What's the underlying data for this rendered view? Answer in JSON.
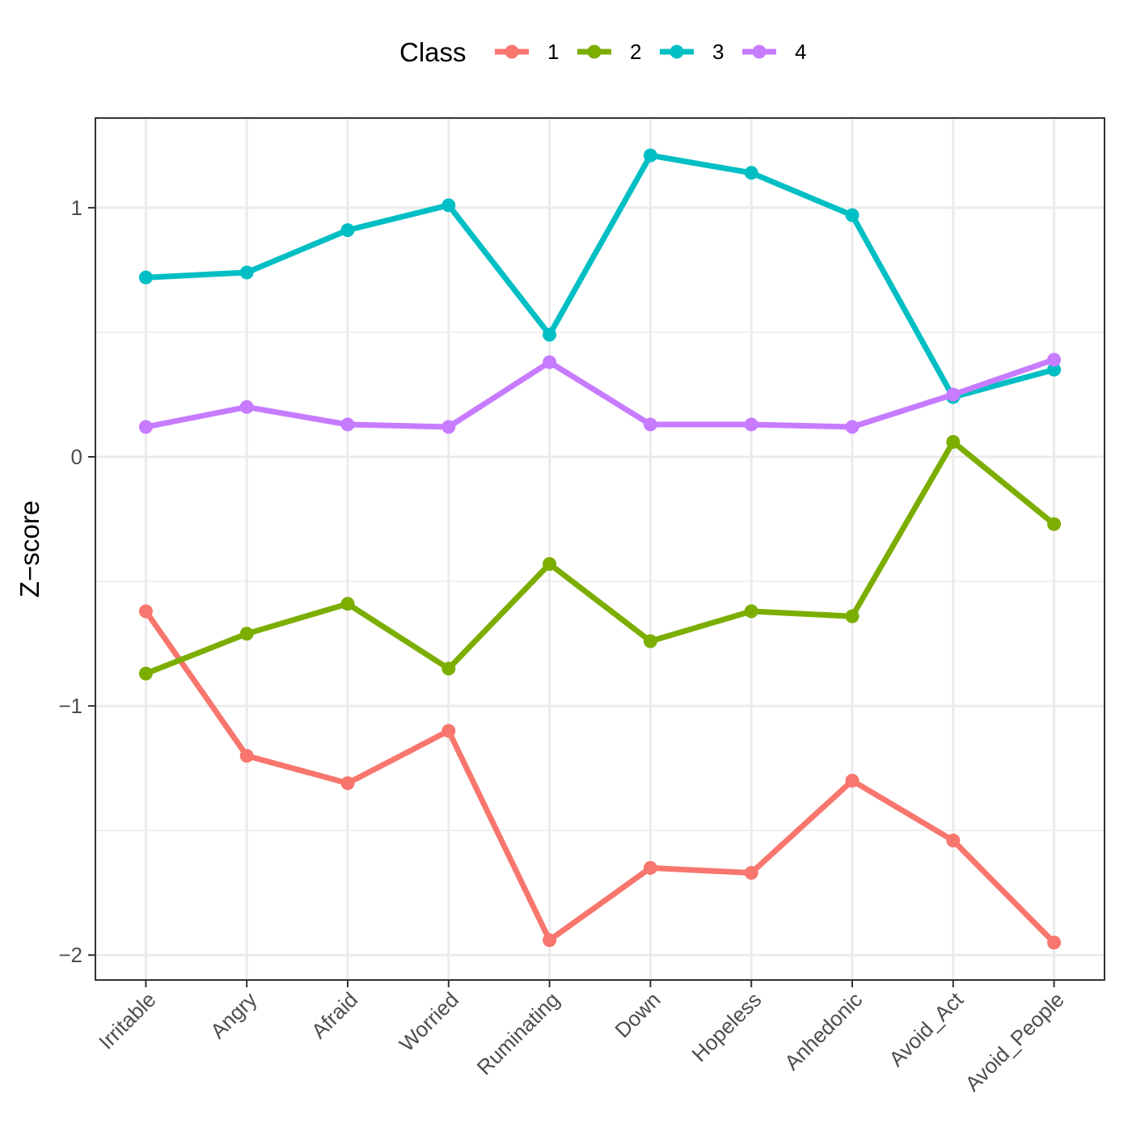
{
  "chart_data": {
    "type": "line",
    "title": "",
    "xlabel": "",
    "ylabel": "Z−score",
    "categories": [
      "Irritable",
      "Angry",
      "Afraid",
      "Worried",
      "Ruminating",
      "Down",
      "Hopeless",
      "Anhedonic",
      "Avoid_Act",
      "Avoid_People"
    ],
    "ylim": [
      -2.1,
      1.36
    ],
    "yticks": [
      -2,
      -1,
      0,
      1
    ],
    "ytick_labels": [
      "−2",
      "−1",
      "0",
      "1"
    ],
    "minor_grid": [
      -1.5,
      -0.5,
      0.5
    ],
    "grid": true,
    "legend": {
      "title": "Class",
      "position": "top"
    },
    "series": [
      {
        "name": "1",
        "color": "#F8766D",
        "values": [
          -0.62,
          -1.2,
          -1.31,
          -1.1,
          -1.94,
          -1.65,
          -1.67,
          -1.3,
          -1.54,
          -1.95
        ]
      },
      {
        "name": "2",
        "color": "#7CAE00",
        "values": [
          -0.87,
          -0.71,
          -0.59,
          -0.85,
          -0.43,
          -0.74,
          -0.62,
          -0.64,
          0.06,
          -0.27
        ]
      },
      {
        "name": "3",
        "color": "#00BFC4",
        "values": [
          0.72,
          0.74,
          0.91,
          1.01,
          0.49,
          1.21,
          1.14,
          0.97,
          0.24,
          0.35
        ]
      },
      {
        "name": "4",
        "color": "#C77CFF",
        "values": [
          0.12,
          0.2,
          0.13,
          0.12,
          0.38,
          0.13,
          0.13,
          0.12,
          0.25,
          0.39
        ]
      }
    ]
  }
}
